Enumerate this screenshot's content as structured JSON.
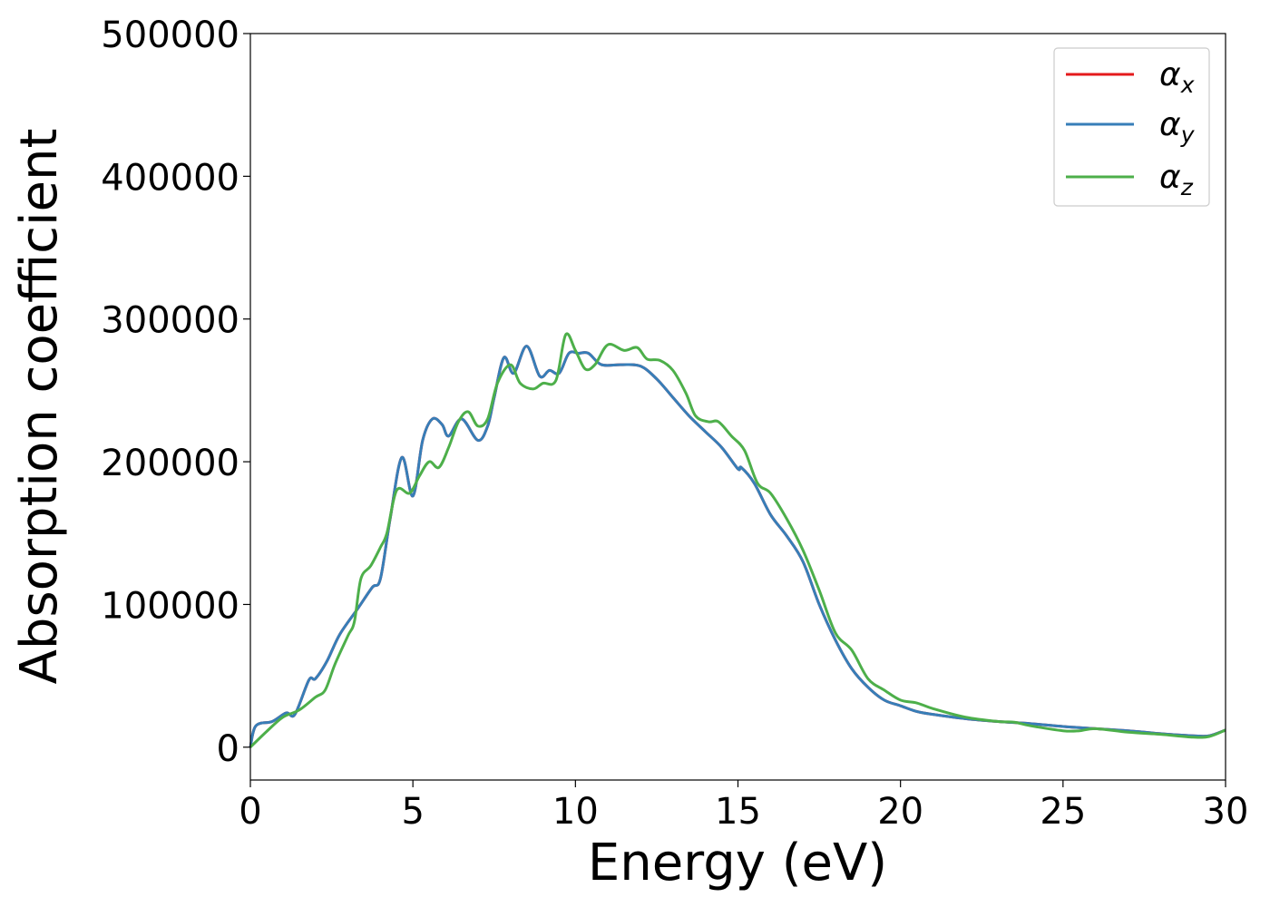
{
  "chart_data": {
    "type": "line",
    "title": "",
    "xlabel": "Energy (eV)",
    "ylabel": "Absorption coefficient",
    "xlim": [
      0,
      30
    ],
    "ylim": [
      -23000,
      500000
    ],
    "xticks": [
      0,
      5,
      10,
      15,
      20,
      25,
      30
    ],
    "yticks": [
      0,
      100000,
      200000,
      300000,
      400000,
      500000
    ],
    "xtick_labels": [
      "0",
      "5",
      "10",
      "15",
      "20",
      "25",
      "30"
    ],
    "ytick_labels": [
      "0",
      "100000",
      "200000",
      "300000",
      "400000",
      "500000"
    ],
    "grid": false,
    "legend_position": "top-right",
    "series": [
      {
        "name": "αx",
        "symbol": "α",
        "subscript": "x",
        "color": "#e41a1c",
        "x": [
          0,
          0.17,
          0.67,
          1.1,
          1.37,
          1.8,
          2.0,
          2.35,
          2.75,
          3.3,
          3.75,
          4.0,
          4.3,
          4.66,
          5.0,
          5.3,
          5.6,
          5.9,
          6.1,
          6.5,
          7.0,
          7.3,
          7.5,
          7.8,
          8.1,
          8.5,
          8.9,
          9.2,
          9.5,
          9.8,
          10.1,
          10.4,
          10.8,
          11.4,
          12.0,
          12.5,
          13.0,
          13.5,
          14.0,
          14.5,
          15.0,
          15.1,
          15.5,
          16.0,
          16.5,
          17.0,
          17.5,
          18.0,
          18.5,
          19.0,
          19.5,
          20.0,
          20.5,
          21,
          22,
          23,
          24,
          25,
          26,
          27,
          28,
          29,
          29.5,
          30
        ],
        "y": [
          0,
          15000,
          18000,
          24000,
          23000,
          47000,
          48000,
          60000,
          79000,
          97000,
          112000,
          118000,
          160000,
          203000,
          176000,
          215000,
          230000,
          226000,
          218000,
          230000,
          215000,
          225000,
          245000,
          273000,
          262000,
          281000,
          260000,
          264000,
          262000,
          276000,
          276000,
          276000,
          268000,
          268000,
          267000,
          258000,
          245000,
          232000,
          221000,
          210000,
          195000,
          196000,
          185000,
          163000,
          148000,
          130000,
          100000,
          75000,
          55000,
          42000,
          33000,
          29000,
          25000,
          23000,
          20000,
          18000,
          16500,
          14500,
          13000,
          11500,
          9500,
          8000,
          8000,
          12000
        ]
      },
      {
        "name": "αy",
        "symbol": "α",
        "subscript": "y",
        "color": "#377eb8",
        "x": [
          0,
          0.17,
          0.67,
          1.1,
          1.37,
          1.8,
          2.0,
          2.35,
          2.75,
          3.3,
          3.75,
          4.0,
          4.3,
          4.66,
          5.0,
          5.3,
          5.6,
          5.9,
          6.1,
          6.5,
          7.0,
          7.3,
          7.5,
          7.8,
          8.1,
          8.5,
          8.9,
          9.2,
          9.5,
          9.8,
          10.1,
          10.4,
          10.8,
          11.4,
          12.0,
          12.5,
          13.0,
          13.5,
          14.0,
          14.5,
          15.0,
          15.1,
          15.5,
          16.0,
          16.5,
          17.0,
          17.5,
          18.0,
          18.5,
          19.0,
          19.5,
          20.0,
          20.5,
          21,
          22,
          23,
          24,
          25,
          26,
          27,
          28,
          29,
          29.5,
          30
        ],
        "y": [
          0,
          15000,
          18000,
          24000,
          23000,
          47000,
          48000,
          60000,
          79000,
          97000,
          112000,
          118000,
          160000,
          203000,
          176000,
          215000,
          230000,
          226000,
          218000,
          230000,
          215000,
          225000,
          245000,
          273000,
          262000,
          281000,
          260000,
          264000,
          262000,
          276000,
          276000,
          276000,
          268000,
          268000,
          267000,
          258000,
          245000,
          232000,
          221000,
          210000,
          195000,
          196000,
          185000,
          163000,
          148000,
          130000,
          100000,
          75000,
          55000,
          42000,
          33000,
          29000,
          25000,
          23000,
          20000,
          18000,
          16500,
          14500,
          13000,
          11500,
          9500,
          8000,
          8000,
          12000
        ]
      },
      {
        "name": "αz",
        "symbol": "α",
        "subscript": "z",
        "color": "#4daf4a",
        "x": [
          0,
          0.5,
          1,
          1.5,
          2,
          2.3,
          2.6,
          3.0,
          3.2,
          3.4,
          3.7,
          4.0,
          4.2,
          4.5,
          4.9,
          5.2,
          5.5,
          5.8,
          6.1,
          6.4,
          6.7,
          7.0,
          7.3,
          7.6,
          8.0,
          8.3,
          8.7,
          9.0,
          9.4,
          9.7,
          10.0,
          10.3,
          10.6,
          11.0,
          11.5,
          11.9,
          12.2,
          12.6,
          13.0,
          13.4,
          13.7,
          14.1,
          14.4,
          14.8,
          15.2,
          15.6,
          16.0,
          16.5,
          17.0,
          17.5,
          18.0,
          18.5,
          19.0,
          19.5,
          20.0,
          20.5,
          21,
          22,
          23,
          23.5,
          24,
          25,
          25.5,
          26,
          27,
          28,
          29,
          29.5,
          30
        ],
        "y": [
          0,
          11000,
          21000,
          26000,
          35000,
          40000,
          58000,
          78000,
          88000,
          118000,
          127000,
          140000,
          150000,
          180000,
          178000,
          190000,
          200000,
          196000,
          210000,
          228000,
          235000,
          225000,
          230000,
          255000,
          268000,
          255000,
          251000,
          255000,
          257000,
          289000,
          278000,
          265000,
          268000,
          282000,
          278000,
          280000,
          272000,
          271000,
          264000,
          248000,
          232000,
          228000,
          228000,
          218000,
          208000,
          185000,
          178000,
          160000,
          138000,
          110000,
          80000,
          68000,
          48000,
          40000,
          33000,
          31000,
          27000,
          21000,
          18000,
          17500,
          15000,
          11500,
          11500,
          13000,
          10500,
          9000,
          7000,
          7500,
          12000
        ]
      }
    ]
  }
}
